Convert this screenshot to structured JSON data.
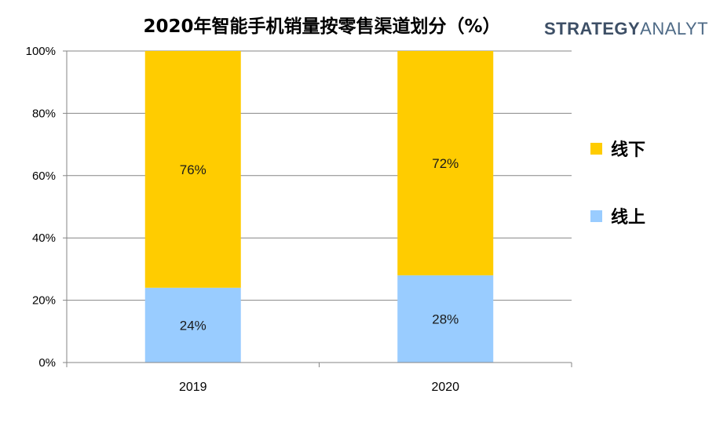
{
  "logo": {
    "strong": "STRATEGY",
    "light": "ANALYTICS"
  },
  "colors": {
    "offline": "#FFCC00",
    "online": "#99CCFF",
    "grid": "#868686",
    "axis": "#868686"
  },
  "chart_data": {
    "type": "bar",
    "stacked": true,
    "title": "2020年智能手机销量按零售渠道划分（%）",
    "categories": [
      "2019",
      "2020"
    ],
    "series": [
      {
        "name": "线上",
        "values": [
          24,
          28
        ],
        "labels": [
          "24%",
          "28%"
        ],
        "color": "#99CCFF"
      },
      {
        "name": "线下",
        "values": [
          76,
          72
        ],
        "labels": [
          "76%",
          "72%"
        ],
        "color": "#FFCC00"
      }
    ],
    "yticks": [
      "0%",
      "20%",
      "40%",
      "60%",
      "80%",
      "100%"
    ],
    "ylim": [
      0,
      100
    ],
    "grid": true,
    "legend": {
      "position": "right",
      "order": [
        "线下",
        "线上"
      ]
    }
  }
}
